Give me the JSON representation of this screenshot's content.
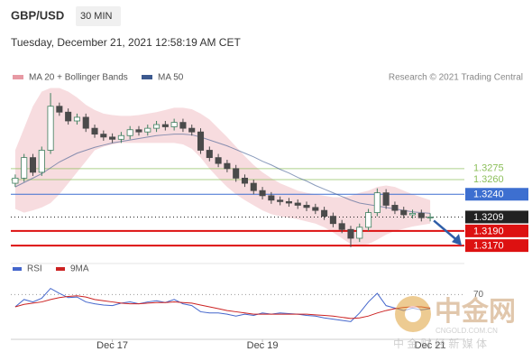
{
  "header": {
    "symbol": "GBP/USD",
    "timeframe": "30 MIN",
    "timestamp": "Tuesday, December 21, 2021 12:58:19 AM CET"
  },
  "watermark": {
    "brand": "中金网",
    "site": "CNGOLD.COM.CN",
    "tagline": "中 金 财 经 新 媒 体"
  },
  "chart_data": [
    {
      "type": "candlestick",
      "credit": "Research © 2021 Trading Central",
      "ylim": [
        1.3148,
        1.3388
      ],
      "up_color": "#3f7f5f",
      "down_color": "#4a4a4a",
      "open": [
        1.3255,
        1.3262,
        1.329,
        1.327,
        1.33,
        1.336,
        1.3352,
        1.334,
        1.3345,
        1.333,
        1.3322,
        1.3318,
        1.3315,
        1.332,
        1.3328,
        1.3325,
        1.333,
        1.3335,
        1.3332,
        1.3338,
        1.333,
        1.3325,
        1.33,
        1.329,
        1.3282,
        1.3275,
        1.3262,
        1.3255,
        1.3245,
        1.3238,
        1.3232,
        1.323,
        1.3228,
        1.3225,
        1.3222,
        1.3218,
        1.321,
        1.32,
        1.3192,
        1.318,
        1.3195,
        1.3215,
        1.3242,
        1.3225,
        1.3218,
        1.3212,
        1.3214,
        1.3208
      ],
      "high": [
        1.3267,
        1.3295,
        1.3295,
        1.3305,
        1.3378,
        1.3365,
        1.3357,
        1.335,
        1.335,
        1.3335,
        1.3327,
        1.3323,
        1.3325,
        1.3333,
        1.3333,
        1.3335,
        1.334,
        1.334,
        1.3343,
        1.3343,
        1.3335,
        1.333,
        1.3305,
        1.3295,
        1.3287,
        1.328,
        1.3267,
        1.326,
        1.325,
        1.3243,
        1.3237,
        1.3235,
        1.3233,
        1.323,
        1.3227,
        1.3223,
        1.3215,
        1.3205,
        1.3197,
        1.32,
        1.322,
        1.3248,
        1.3247,
        1.323,
        1.3223,
        1.3219,
        1.3219,
        1.3214
      ],
      "low": [
        1.325,
        1.3257,
        1.3265,
        1.3265,
        1.3295,
        1.3347,
        1.3335,
        1.3335,
        1.3325,
        1.3317,
        1.3313,
        1.331,
        1.331,
        1.3315,
        1.332,
        1.332,
        1.3325,
        1.3327,
        1.3327,
        1.3325,
        1.332,
        1.3295,
        1.3285,
        1.3277,
        1.327,
        1.3257,
        1.325,
        1.324,
        1.3233,
        1.3227,
        1.3225,
        1.3223,
        1.322,
        1.3217,
        1.3213,
        1.3205,
        1.3195,
        1.3187,
        1.3168,
        1.3175,
        1.319,
        1.321,
        1.322,
        1.3213,
        1.3207,
        1.3207,
        1.3203,
        1.3203
      ],
      "close": [
        1.3262,
        1.329,
        1.327,
        1.33,
        1.336,
        1.3352,
        1.334,
        1.3345,
        1.333,
        1.3322,
        1.3318,
        1.3315,
        1.332,
        1.3328,
        1.3325,
        1.333,
        1.3335,
        1.3332,
        1.3338,
        1.333,
        1.3325,
        1.33,
        1.329,
        1.3282,
        1.3275,
        1.3262,
        1.3255,
        1.3245,
        1.3238,
        1.3232,
        1.323,
        1.3228,
        1.3225,
        1.3222,
        1.3218,
        1.321,
        1.32,
        1.3192,
        1.318,
        1.3195,
        1.3215,
        1.3242,
        1.3225,
        1.3218,
        1.3212,
        1.3214,
        1.3208,
        1.3209
      ],
      "series": [
        {
          "name": "MA 20 + Bollinger Bands",
          "color": "#e79aa4",
          "upper": [
            1.33,
            1.333,
            1.336,
            1.338,
            1.3385,
            1.3385,
            1.338,
            1.3372,
            1.3362,
            1.3355,
            1.335,
            1.3348,
            1.3347,
            1.3347,
            1.3348,
            1.335,
            1.3352,
            1.3355,
            1.3358,
            1.3358,
            1.3356,
            1.335,
            1.3342,
            1.333,
            1.3318,
            1.3305,
            1.3292,
            1.328,
            1.327,
            1.3262,
            1.3255,
            1.325,
            1.3245,
            1.3242,
            1.324,
            1.3238,
            1.3236,
            1.3236,
            1.3238,
            1.3242,
            1.3245,
            1.325,
            1.3252,
            1.325,
            1.3245,
            1.324,
            1.3236,
            1.3232
          ],
          "lower": [
            1.322,
            1.3215,
            1.3218,
            1.3222,
            1.3228,
            1.324,
            1.3255,
            1.327,
            1.3285,
            1.33,
            1.3305,
            1.3308,
            1.331,
            1.331,
            1.331,
            1.331,
            1.331,
            1.331,
            1.331,
            1.3308,
            1.3302,
            1.329,
            1.3275,
            1.3262,
            1.325,
            1.324,
            1.3232,
            1.3225,
            1.3218,
            1.3213,
            1.321,
            1.3208,
            1.3206,
            1.3203,
            1.32,
            1.3195,
            1.3188,
            1.318,
            1.3172,
            1.317,
            1.3172,
            1.3178,
            1.3185,
            1.319,
            1.3193,
            1.3196,
            1.3198,
            1.32
          ]
        },
        {
          "name": "MA 50",
          "color": "#3d5a8f",
          "values": [
            1.325,
            1.3256,
            1.3262,
            1.3268,
            1.3276,
            1.3284,
            1.329,
            1.3296,
            1.33,
            1.3304,
            1.3307,
            1.331,
            1.3312,
            1.3314,
            1.3316,
            1.3318,
            1.332,
            1.3321,
            1.3322,
            1.3322,
            1.3321,
            1.3318,
            1.3314,
            1.331,
            1.3306,
            1.3301,
            1.3296,
            1.3291,
            1.3285,
            1.328,
            1.3274,
            1.3269,
            1.3263,
            1.3258,
            1.3252,
            1.3247,
            1.3242,
            1.3237,
            1.3232,
            1.3228,
            1.3226,
            1.3224,
            1.3222,
            1.322,
            1.3218,
            1.3216,
            1.3215,
            1.3214
          ]
        }
      ],
      "levels": [
        {
          "value": 1.3275,
          "color": "#8cbf5a",
          "style": "text",
          "line": "thin"
        },
        {
          "value": 1.326,
          "label": "1.3260",
          "color": "#8cbf5a",
          "style": "text",
          "line": "thin"
        },
        {
          "value": 1.324,
          "label": "1.3240",
          "color": "#3d6fd0",
          "style": "box",
          "line": "thin"
        },
        {
          "value": 1.3209,
          "color": "#222222",
          "style": "box",
          "line": "dotted"
        },
        {
          "value": 1.319,
          "label": "1.3190",
          "color": "#dd1111",
          "style": "box",
          "line": "thick"
        },
        {
          "value": 1.317,
          "label": "1.3170",
          "color": "#dd1111",
          "style": "box",
          "line": "thick"
        }
      ]
    },
    {
      "type": "line",
      "ylim": [
        0,
        100
      ],
      "yticks": [
        70
      ],
      "categories": [
        null,
        null,
        null,
        null,
        null,
        null,
        null,
        null,
        null,
        null,
        null,
        "Dec 17",
        null,
        null,
        null,
        null,
        null,
        null,
        null,
        null,
        null,
        null,
        null,
        null,
        null,
        null,
        null,
        null,
        "Dec 19",
        null,
        null,
        null,
        null,
        null,
        null,
        null,
        null,
        null,
        null,
        null,
        null,
        null,
        null,
        null,
        null,
        null,
        null,
        "Dec 21"
      ],
      "series": [
        {
          "name": "RSI",
          "color": "#4466cc",
          "values": [
            50,
            62,
            58,
            64,
            80,
            72,
            65,
            66,
            58,
            55,
            53,
            52,
            56,
            58,
            55,
            58,
            60,
            57,
            62,
            55,
            52,
            42,
            40,
            40,
            38,
            35,
            38,
            36,
            40,
            38,
            40,
            39,
            38,
            36,
            35,
            32,
            30,
            28,
            26,
            40,
            58,
            72,
            52,
            48,
            44,
            48,
            45,
            47
          ]
        },
        {
          "name": "9MA",
          "color": "#cc2222",
          "values": [
            50,
            54,
            56,
            58,
            62,
            65,
            67,
            68,
            66,
            62,
            60,
            58,
            56,
            55,
            55,
            56,
            57,
            57,
            58,
            57,
            56,
            53,
            50,
            47,
            44,
            42,
            40,
            38,
            38,
            38,
            38,
            38,
            38,
            38,
            37,
            36,
            35,
            33,
            31,
            32,
            35,
            40,
            44,
            47,
            49,
            50,
            50,
            48
          ]
        }
      ]
    }
  ]
}
